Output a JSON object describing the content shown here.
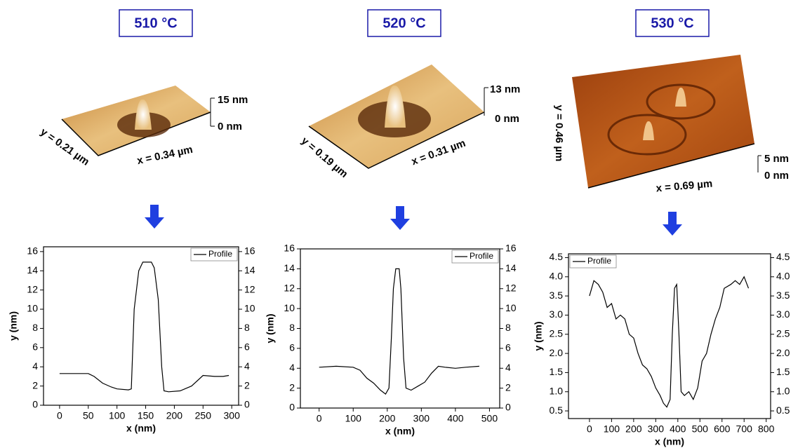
{
  "panels": [
    {
      "temperature": "510 °C",
      "afm": {
        "z_max": "15 nm",
        "z_min": "0 nm",
        "y_size": "y = 0.21 µm",
        "x_size": "x = 0.34 µm"
      }
    },
    {
      "temperature": "520 °C",
      "afm": {
        "z_max": "13 nm",
        "z_min": "0 nm",
        "y_size": "y = 0.19 µm",
        "x_size": "x = 0.31 µm"
      }
    },
    {
      "temperature": "530 °C",
      "afm": {
        "z_max": "5 nm",
        "z_min": "0 nm",
        "y_size": "y = 0.46 µm",
        "x_size": "x = 0.69 µm"
      }
    }
  ],
  "chart_data": [
    {
      "type": "line",
      "x_label": "x (nm)",
      "y_label": "y (nm)",
      "legend": "upper right",
      "x": [
        0,
        50,
        60,
        75,
        90,
        100,
        120,
        125,
        130,
        138,
        145,
        160,
        165,
        172,
        178,
        182,
        190,
        210,
        230,
        250,
        270,
        285,
        295
      ],
      "series": [
        {
          "name": "Profile",
          "color": "#000000",
          "values": [
            3.3,
            3.3,
            3.0,
            2.3,
            1.9,
            1.7,
            1.6,
            1.7,
            10,
            14,
            14.9,
            14.9,
            14.3,
            11,
            4,
            1.5,
            1.4,
            1.5,
            2,
            3.1,
            3.0,
            3.0,
            3.1
          ]
        }
      ],
      "xlim": [
        -28,
        312
      ],
      "xticks": [
        0,
        50,
        100,
        150,
        200,
        250,
        300
      ],
      "ylim": [
        0,
        16.5
      ],
      "yticks": [
        0,
        2,
        4,
        6,
        8,
        10,
        12,
        14,
        16
      ],
      "y2lim": [
        0,
        16.5
      ],
      "y2ticks": [
        0,
        2,
        4,
        6,
        8,
        10,
        12,
        14,
        16
      ]
    },
    {
      "type": "line",
      "x_label": "x (nm)",
      "y_label": "y (nm)",
      "legend": "upper right",
      "x": [
        0,
        50,
        100,
        120,
        140,
        160,
        180,
        195,
        205,
        212,
        218,
        225,
        235,
        240,
        248,
        255,
        270,
        290,
        310,
        330,
        350,
        370,
        400,
        430,
        470
      ],
      "series": [
        {
          "name": "Profile",
          "color": "#000000",
          "values": [
            4.1,
            4.2,
            4.1,
            3.8,
            3,
            2.5,
            1.8,
            1.4,
            2,
            7,
            12,
            14,
            14,
            12,
            5,
            2,
            1.8,
            2.2,
            2.6,
            3.5,
            4.2,
            4.1,
            4,
            4.1,
            4.2
          ]
        }
      ],
      "xlim": [
        -55,
        530
      ],
      "xticks": [
        0,
        100,
        200,
        300,
        400,
        500
      ],
      "ylim": [
        0,
        16
      ],
      "yticks": [
        0,
        2,
        4,
        6,
        8,
        10,
        12,
        14,
        16
      ],
      "y2lim": [
        0,
        16
      ],
      "y2ticks": [
        0,
        2,
        4,
        6,
        8,
        10,
        12,
        14,
        16
      ]
    },
    {
      "type": "line",
      "x_label": "x (nm)",
      "y_label": "y (nm)",
      "legend": "upper left",
      "x": [
        0,
        20,
        40,
        60,
        80,
        100,
        120,
        140,
        160,
        180,
        200,
        220,
        240,
        260,
        280,
        300,
        320,
        335,
        350,
        365,
        375,
        385,
        395,
        405,
        415,
        430,
        450,
        470,
        490,
        510,
        530,
        550,
        570,
        590,
        610,
        640,
        660,
        680,
        700,
        720
      ],
      "series": [
        {
          "name": "Profile",
          "color": "#000000",
          "values": [
            3.5,
            3.9,
            3.8,
            3.6,
            3.2,
            3.3,
            2.9,
            3.0,
            2.9,
            2.5,
            2.4,
            2.0,
            1.7,
            1.6,
            1.4,
            1.1,
            0.9,
            0.7,
            0.6,
            0.8,
            2.5,
            3.7,
            3.8,
            2.5,
            1.0,
            0.9,
            1.0,
            0.8,
            1.1,
            1.8,
            2.0,
            2.5,
            2.9,
            3.2,
            3.7,
            3.8,
            3.9,
            3.8,
            4.0,
            3.7
          ]
        }
      ],
      "xlim": [
        -95,
        820
      ],
      "xticks": [
        0,
        100,
        200,
        300,
        400,
        500,
        600,
        700,
        800
      ],
      "ylim": [
        0.3,
        4.6
      ],
      "yticks": [
        0.5,
        {
          "value": 1,
          "label": "1.0"
        },
        1.5,
        {
          "value": 2,
          "label": "2.0"
        },
        2.5,
        {
          "value": 3,
          "label": "3.0"
        },
        3.5,
        {
          "value": 4,
          "label": "4.0"
        },
        4.5
      ],
      "y2lim": [
        0.3,
        4.6
      ],
      "y2ticks": [
        0.5,
        {
          "value": 1,
          "label": "1.0"
        },
        1.5,
        {
          "value": 2,
          "label": "2.0"
        },
        2.5,
        {
          "value": 3,
          "label": "3.0"
        },
        3.5,
        {
          "value": 4,
          "label": "4.0"
        },
        4.5
      ]
    }
  ]
}
